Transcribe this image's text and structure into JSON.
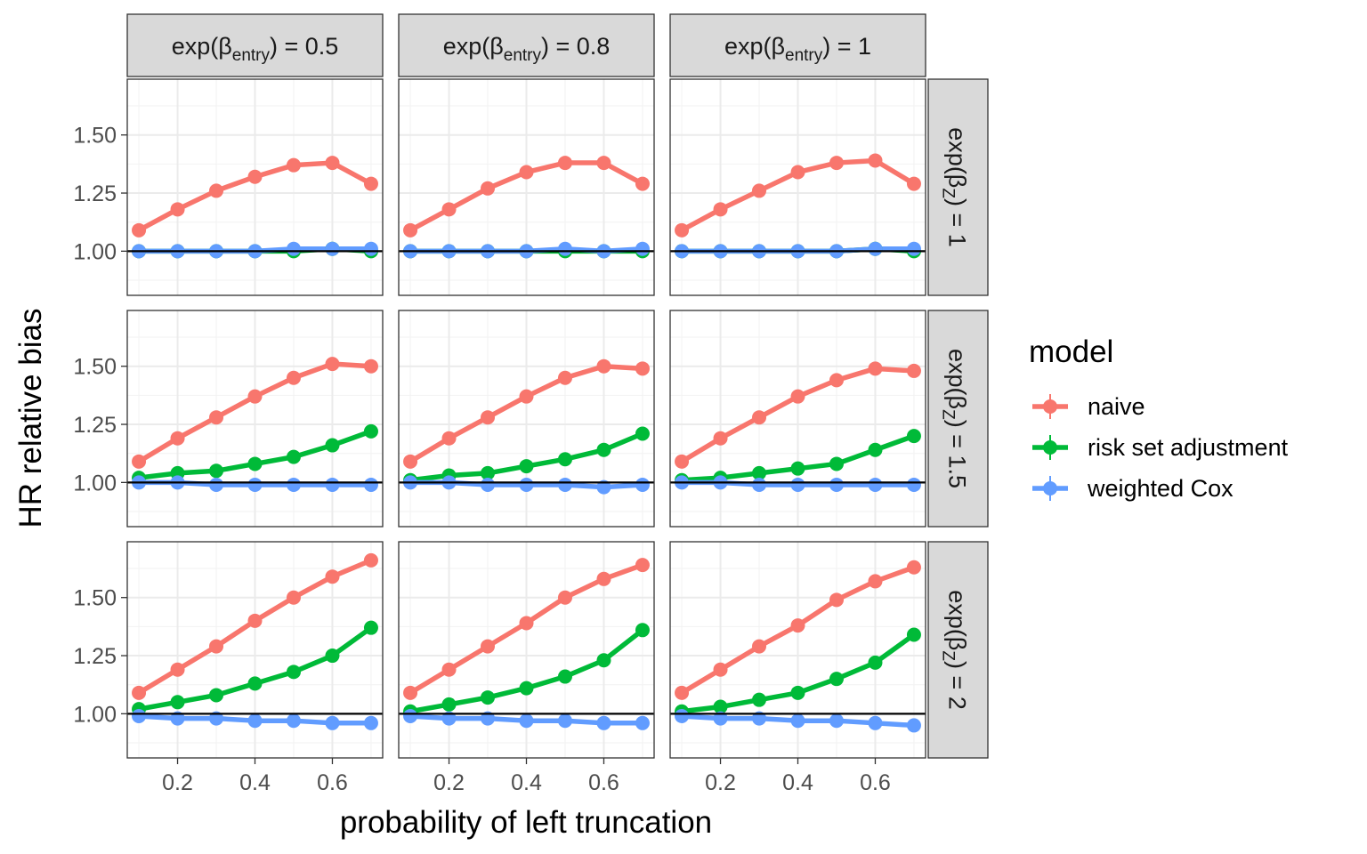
{
  "chart_data": {
    "type": "line",
    "layout": "facet_grid",
    "xlabel": "probability of left truncation",
    "ylabel": "HR relative bias",
    "xlim": [
      0.07,
      0.73
    ],
    "ylim": [
      0.81,
      1.74
    ],
    "x_ticks": [
      0.2,
      0.4,
      0.6
    ],
    "x_tick_labels": [
      "0.2",
      "0.4",
      "0.6"
    ],
    "y_ticks": [
      1.0,
      1.25,
      1.5
    ],
    "y_tick_labels": [
      "1.00",
      "1.25",
      "1.50"
    ],
    "reference_line": 1.0,
    "grid": true,
    "x": [
      0.1,
      0.2,
      0.3,
      0.4,
      0.5,
      0.6,
      0.7
    ],
    "col_facets": [
      {
        "prefix": "exp(",
        "symbol": "β",
        "sub": "entry",
        "suffix": ") = 0.5"
      },
      {
        "prefix": "exp(",
        "symbol": "β",
        "sub": "entry",
        "suffix": ") = 0.8"
      },
      {
        "prefix": "exp(",
        "symbol": "β",
        "sub": "entry",
        "suffix": ") = 1"
      }
    ],
    "row_facets": [
      {
        "prefix": "exp(",
        "symbol": "β",
        "sub": "Z",
        "suffix": ") = 1"
      },
      {
        "prefix": "exp(",
        "symbol": "β",
        "sub": "Z",
        "suffix": ") = 1.5"
      },
      {
        "prefix": "exp(",
        "symbol": "β",
        "sub": "Z",
        "suffix": ") = 2"
      }
    ],
    "legend": {
      "title": "model",
      "entries": [
        {
          "name": "naive",
          "color": "#F8766D"
        },
        {
          "name": "risk set adjustment",
          "color": "#00BA38"
        },
        {
          "name": "weighted Cox",
          "color": "#619CFF"
        }
      ]
    },
    "panels": [
      [
        {
          "series": [
            {
              "name": "naive",
              "values": [
                1.09,
                1.18,
                1.26,
                1.32,
                1.37,
                1.38,
                1.29
              ]
            },
            {
              "name": "risk set adjustment",
              "values": [
                1.0,
                1.0,
                1.0,
                1.0,
                1.0,
                1.01,
                1.0
              ]
            },
            {
              "name": "weighted Cox",
              "values": [
                1.0,
                1.0,
                1.0,
                1.0,
                1.01,
                1.01,
                1.01
              ]
            }
          ]
        },
        {
          "series": [
            {
              "name": "naive",
              "values": [
                1.09,
                1.18,
                1.27,
                1.34,
                1.38,
                1.38,
                1.29
              ]
            },
            {
              "name": "risk set adjustment",
              "values": [
                1.0,
                1.0,
                1.0,
                1.0,
                1.0,
                1.0,
                1.0
              ]
            },
            {
              "name": "weighted Cox",
              "values": [
                1.0,
                1.0,
                1.0,
                1.0,
                1.01,
                1.0,
                1.01
              ]
            }
          ]
        },
        {
          "series": [
            {
              "name": "naive",
              "values": [
                1.09,
                1.18,
                1.26,
                1.34,
                1.38,
                1.39,
                1.29
              ]
            },
            {
              "name": "risk set adjustment",
              "values": [
                1.0,
                1.0,
                1.0,
                1.0,
                1.0,
                1.01,
                1.0
              ]
            },
            {
              "name": "weighted Cox",
              "values": [
                1.0,
                1.0,
                1.0,
                1.0,
                1.0,
                1.01,
                1.01
              ]
            }
          ]
        }
      ],
      [
        {
          "series": [
            {
              "name": "naive",
              "values": [
                1.09,
                1.19,
                1.28,
                1.37,
                1.45,
                1.51,
                1.5
              ]
            },
            {
              "name": "risk set adjustment",
              "values": [
                1.02,
                1.04,
                1.05,
                1.08,
                1.11,
                1.16,
                1.22
              ]
            },
            {
              "name": "weighted Cox",
              "values": [
                1.0,
                1.0,
                0.99,
                0.99,
                0.99,
                0.99,
                0.99
              ]
            }
          ]
        },
        {
          "series": [
            {
              "name": "naive",
              "values": [
                1.09,
                1.19,
                1.28,
                1.37,
                1.45,
                1.5,
                1.49
              ]
            },
            {
              "name": "risk set adjustment",
              "values": [
                1.01,
                1.03,
                1.04,
                1.07,
                1.1,
                1.14,
                1.21
              ]
            },
            {
              "name": "weighted Cox",
              "values": [
                1.0,
                1.0,
                0.99,
                0.99,
                0.99,
                0.98,
                0.99
              ]
            }
          ]
        },
        {
          "series": [
            {
              "name": "naive",
              "values": [
                1.09,
                1.19,
                1.28,
                1.37,
                1.44,
                1.49,
                1.48
              ]
            },
            {
              "name": "risk set adjustment",
              "values": [
                1.01,
                1.02,
                1.04,
                1.06,
                1.08,
                1.14,
                1.2
              ]
            },
            {
              "name": "weighted Cox",
              "values": [
                1.0,
                1.0,
                0.99,
                0.99,
                0.99,
                0.99,
                0.99
              ]
            }
          ]
        }
      ],
      [
        {
          "series": [
            {
              "name": "naive",
              "values": [
                1.09,
                1.19,
                1.29,
                1.4,
                1.5,
                1.59,
                1.66
              ]
            },
            {
              "name": "risk set adjustment",
              "values": [
                1.02,
                1.05,
                1.08,
                1.13,
                1.18,
                1.25,
                1.37
              ]
            },
            {
              "name": "weighted Cox",
              "values": [
                0.99,
                0.98,
                0.98,
                0.97,
                0.97,
                0.96,
                0.96
              ]
            }
          ]
        },
        {
          "series": [
            {
              "name": "naive",
              "values": [
                1.09,
                1.19,
                1.29,
                1.39,
                1.5,
                1.58,
                1.64
              ]
            },
            {
              "name": "risk set adjustment",
              "values": [
                1.01,
                1.04,
                1.07,
                1.11,
                1.16,
                1.23,
                1.36
              ]
            },
            {
              "name": "weighted Cox",
              "values": [
                0.99,
                0.98,
                0.98,
                0.97,
                0.97,
                0.96,
                0.96
              ]
            }
          ]
        },
        {
          "series": [
            {
              "name": "naive",
              "values": [
                1.09,
                1.19,
                1.29,
                1.38,
                1.49,
                1.57,
                1.63
              ]
            },
            {
              "name": "risk set adjustment",
              "values": [
                1.01,
                1.03,
                1.06,
                1.09,
                1.15,
                1.22,
                1.34
              ]
            },
            {
              "name": "weighted Cox",
              "values": [
                0.99,
                0.98,
                0.98,
                0.97,
                0.97,
                0.96,
                0.95
              ]
            }
          ]
        }
      ]
    ]
  }
}
